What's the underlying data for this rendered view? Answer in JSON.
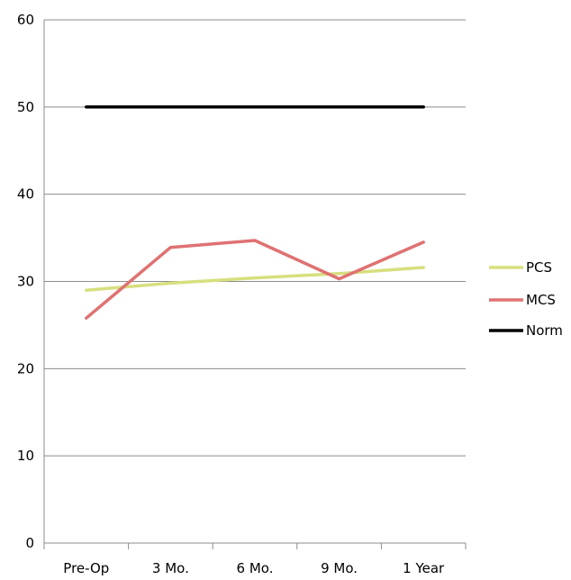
{
  "chart_data": {
    "type": "line",
    "title": "",
    "xlabel": "",
    "ylabel": "",
    "categories": [
      "Pre-Op",
      "3 Mo.",
      "6 Mo.",
      "9 Mo.",
      "1 Year"
    ],
    "ylim": [
      0,
      60
    ],
    "yticks": [
      0,
      10,
      20,
      30,
      40,
      50,
      60
    ],
    "grid": true,
    "legend_position": "right",
    "series": [
      {
        "name": "PCS",
        "color": "#d7df7f",
        "values": [
          29.0,
          29.8,
          30.4,
          30.9,
          31.6
        ]
      },
      {
        "name": "MCS",
        "color": "#df7272",
        "values": [
          25.8,
          33.9,
          34.7,
          30.3,
          34.5
        ]
      },
      {
        "name": "Norm",
        "color": "#000000",
        "values": [
          50,
          50,
          50,
          50,
          50
        ]
      }
    ]
  }
}
